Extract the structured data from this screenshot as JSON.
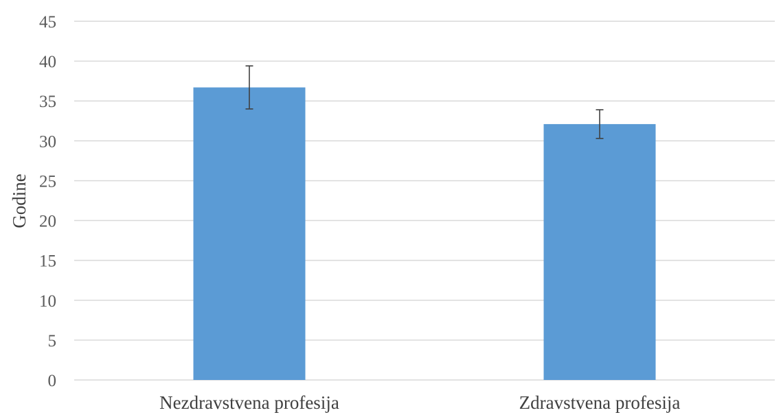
{
  "chart_data": {
    "type": "bar",
    "title": "",
    "xlabel": "",
    "ylabel": "Godine",
    "ylim": [
      0,
      45
    ],
    "yticks": [
      0,
      5,
      10,
      15,
      20,
      25,
      30,
      35,
      40,
      45
    ],
    "grid": true,
    "legend": "none",
    "categories": [
      "Nezdravstvena profesija",
      "Zdravstvena profesija"
    ],
    "values": [
      36.7,
      32.1
    ],
    "error_bars": [
      {
        "low": 34.0,
        "high": 39.4
      },
      {
        "low": 30.3,
        "high": 33.9
      }
    ],
    "bar_color": "#5b9bd5",
    "error_bar_color": "#404040"
  }
}
